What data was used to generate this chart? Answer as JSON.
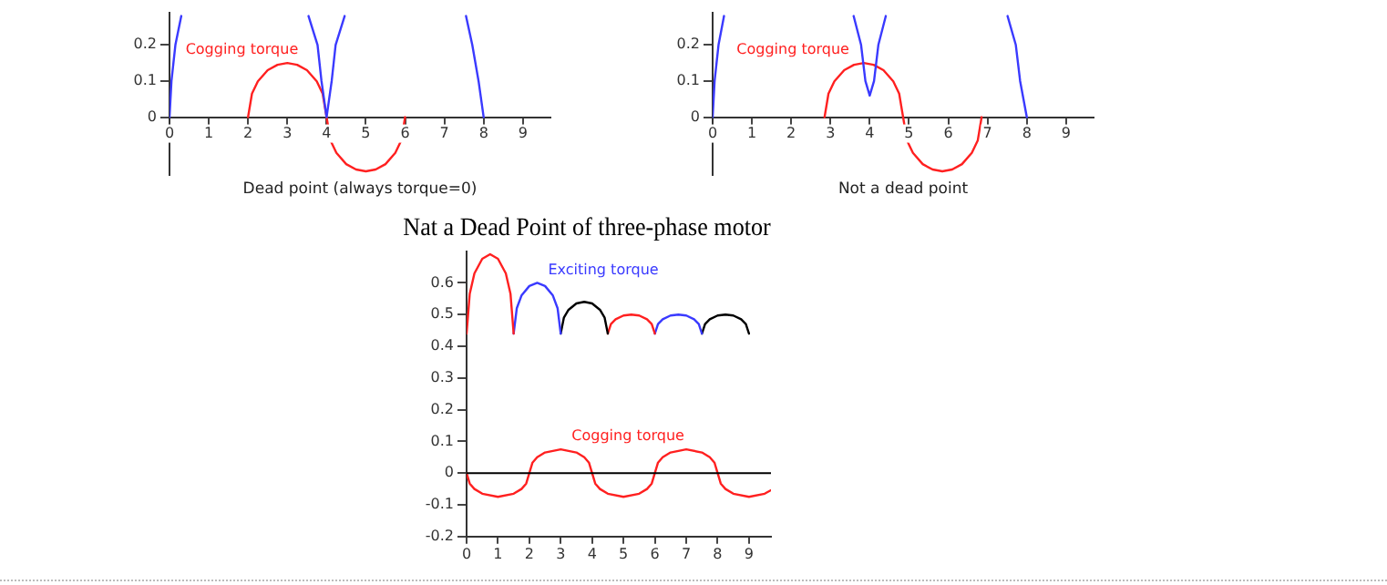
{
  "chart_data": [
    {
      "type": "line",
      "xlabel": "Dead point (always torque=0)",
      "xlim": [
        0,
        9.7
      ],
      "xticks": [
        0,
        1,
        2,
        3,
        4,
        5,
        6,
        7,
        8,
        9
      ],
      "ylim": [
        -0.16,
        0.29
      ],
      "yticks": [
        0,
        0.1,
        0.2
      ],
      "grid": false,
      "legend": false,
      "marker": "none",
      "line_style": "solid",
      "series": [
        {
          "color": "#3a3aff",
          "x": [
            0,
            0.05,
            0.15,
            0.3,
            2,
            3.54,
            3.77,
            3.87,
            4,
            4.13,
            4.23,
            4.46,
            6,
            7.55,
            7.71,
            7.87,
            8
          ],
          "values": [
            0,
            0.1,
            0.2,
            0.28,
            null,
            0.28,
            0.2,
            0.1,
            0,
            0.1,
            0.2,
            0.28,
            null,
            0.28,
            0.2,
            0.1,
            0
          ]
        },
        {
          "name": "Cogging torque",
          "color": "#ff2020",
          "x": [
            2,
            2.1,
            2.25,
            2.5,
            2.75,
            3,
            3.25,
            3.5,
            3.75,
            3.9,
            4,
            4.1,
            4.25,
            4.5,
            4.75,
            5,
            5.25,
            5.5,
            5.75,
            5.9,
            6
          ],
          "values": [
            0,
            0.065,
            0.099,
            0.13,
            0.145,
            0.15,
            0.145,
            0.13,
            0.099,
            0.065,
            0,
            -0.065,
            -0.099,
            -0.13,
            -0.145,
            -0.15,
            -0.145,
            -0.13,
            -0.099,
            -0.065,
            0
          ]
        }
      ]
    },
    {
      "type": "line",
      "xlabel": "Not a dead point",
      "xlim": [
        0,
        9.7
      ],
      "xticks": [
        0,
        1,
        2,
        3,
        4,
        5,
        6,
        7,
        8,
        9
      ],
      "ylim": [
        -0.16,
        0.29
      ],
      "yticks": [
        0,
        0.1,
        0.2
      ],
      "grid": false,
      "legend": false,
      "marker": "none",
      "line_style": "solid",
      "series": [
        {
          "color": "#3a3aff",
          "x": [
            0,
            0.05,
            0.15,
            0.29,
            2,
            3.59,
            3.78,
            3.89,
            4,
            4.11,
            4.22,
            4.41,
            6,
            7.51,
            7.72,
            7.83,
            8
          ],
          "values": [
            0,
            0.1,
            0.2,
            0.28,
            null,
            0.28,
            0.2,
            0.1,
            0.06,
            0.1,
            0.2,
            0.28,
            null,
            0.28,
            0.2,
            0.1,
            0
          ]
        },
        {
          "name": "Cogging torque",
          "color": "#ff2020",
          "x": [
            2.85,
            2.95,
            3.1,
            3.35,
            3.6,
            3.85,
            4.1,
            4.35,
            4.6,
            4.75,
            4.85,
            4.95,
            5.1,
            5.35,
            5.6,
            5.85,
            6.1,
            6.35,
            6.6,
            6.75,
            6.85
          ],
          "values": [
            0,
            0.065,
            0.099,
            0.13,
            0.145,
            0.15,
            0.145,
            0.13,
            0.099,
            0.065,
            0,
            -0.065,
            -0.099,
            -0.13,
            -0.145,
            -0.15,
            -0.145,
            -0.13,
            -0.099,
            -0.065,
            0
          ]
        }
      ]
    },
    {
      "type": "line",
      "title": "Nat a Dead Point of three-phase motor",
      "xlim": [
        0,
        9.7
      ],
      "xticks": [
        0,
        1,
        2,
        3,
        4,
        5,
        6,
        7,
        8,
        9
      ],
      "ylim": [
        -0.2,
        0.7
      ],
      "yticks": [
        -0.2,
        -0.1,
        0,
        0.1,
        0.2,
        0.3,
        0.4,
        0.5,
        0.6
      ],
      "grid": false,
      "legend": false,
      "marker": "none",
      "line_style": "solid",
      "ref_lines": [
        {
          "axis": "y",
          "value": 0,
          "color": "#000000"
        }
      ],
      "series": [
        {
          "color": "#ff2020",
          "x": [
            0,
            0.1,
            0.25,
            0.5,
            0.75,
            1,
            1.25,
            1.4,
            1.5
          ],
          "values": [
            0.44,
            0.565,
            0.63,
            0.676,
            0.69,
            0.676,
            0.63,
            0.565,
            0.44
          ]
        },
        {
          "name": "Exciting torque",
          "color": "#3a3aff",
          "x": [
            1.5,
            1.6,
            1.75,
            2,
            2.25,
            2.5,
            2.75,
            2.9,
            3
          ],
          "values": [
            0.44,
            0.52,
            0.56,
            0.59,
            0.6,
            0.59,
            0.56,
            0.52,
            0.44
          ]
        },
        {
          "color": "#000000",
          "x": [
            3,
            3.1,
            3.25,
            3.5,
            3.75,
            4,
            4.25,
            4.4,
            4.5
          ],
          "values": [
            0.44,
            0.49,
            0.515,
            0.535,
            0.54,
            0.535,
            0.515,
            0.49,
            0.44
          ]
        },
        {
          "color": "#ff2020",
          "x": [
            4.5,
            4.6,
            4.75,
            5,
            5.25,
            5.5,
            5.75,
            5.9,
            6
          ],
          "values": [
            0.44,
            0.47,
            0.485,
            0.497,
            0.5,
            0.497,
            0.485,
            0.47,
            0.44
          ]
        },
        {
          "color": "#3a3aff",
          "x": [
            6,
            6.1,
            6.25,
            6.5,
            6.75,
            7,
            7.25,
            7.4,
            7.5
          ],
          "values": [
            0.44,
            0.47,
            0.485,
            0.497,
            0.5,
            0.497,
            0.485,
            0.47,
            0.44
          ]
        },
        {
          "color": "#000000",
          "x": [
            7.5,
            7.6,
            7.75,
            8,
            8.25,
            8.5,
            8.75,
            8.9,
            9
          ],
          "values": [
            0.44,
            0.47,
            0.485,
            0.497,
            0.5,
            0.497,
            0.485,
            0.47,
            0.44
          ]
        },
        {
          "name": "Cogging torque",
          "color": "#ff2020",
          "x": [
            0,
            0.1,
            0.25,
            0.5,
            1,
            1.5,
            1.75,
            1.9,
            2,
            2.1,
            2.25,
            2.5,
            3,
            3.5,
            3.75,
            3.9,
            4,
            4.1,
            4.25,
            4.5,
            5,
            5.5,
            5.75,
            5.9,
            6,
            6.1,
            6.25,
            6.5,
            7,
            7.5,
            7.75,
            7.9,
            8,
            8.1,
            8.25,
            8.5,
            9,
            9.5,
            9.7
          ],
          "values": [
            0,
            -0.033,
            -0.05,
            -0.065,
            -0.075,
            -0.065,
            -0.05,
            -0.033,
            0,
            0.033,
            0.05,
            0.065,
            0.075,
            0.065,
            0.05,
            0.033,
            0,
            -0.033,
            -0.05,
            -0.065,
            -0.075,
            -0.065,
            -0.05,
            -0.033,
            0,
            0.033,
            0.05,
            0.065,
            0.075,
            0.065,
            0.05,
            0.033,
            0,
            -0.033,
            -0.05,
            -0.065,
            -0.075,
            -0.065,
            -0.054
          ]
        }
      ]
    }
  ]
}
